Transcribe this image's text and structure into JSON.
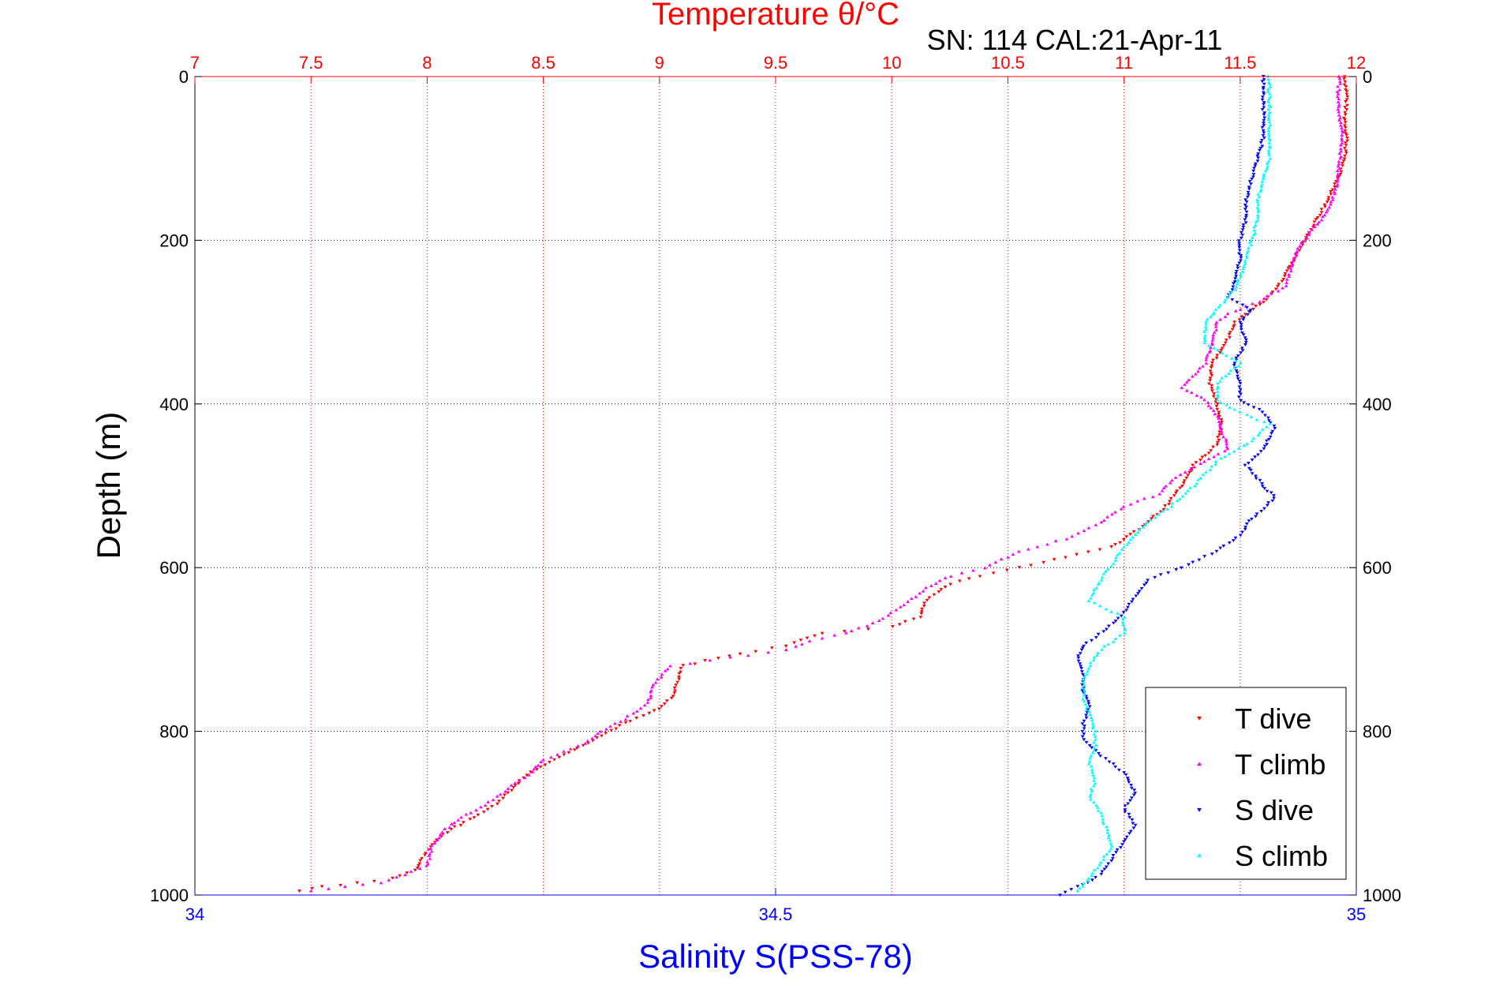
{
  "chart_data": {
    "type": "scatter",
    "title": "Temperature θ/°C",
    "subtitle": "SN: 114  CAL:21-Apr-11",
    "ylabel": "Depth (m)",
    "xlabel_bottom": "Salinity S(PSS-78)",
    "xlabel_top": "Temperature θ/°C",
    "y_reversed": true,
    "ylim": [
      0,
      1000
    ],
    "yticks": [
      0,
      200,
      400,
      600,
      800,
      1000
    ],
    "ytick_labels": [
      "0",
      "200",
      "400",
      "600",
      "800",
      "1000"
    ],
    "salinity_axis": {
      "lim": [
        34,
        35
      ],
      "ticks": [
        34,
        34.5,
        35
      ],
      "tick_labels": [
        "34",
        "34.5",
        "35"
      ],
      "color": "#0000ff"
    },
    "temperature_axis": {
      "lim": [
        7,
        12
      ],
      "ticks": [
        7,
        7.5,
        8,
        8.5,
        9,
        9.5,
        10,
        10.5,
        11,
        11.5,
        12
      ],
      "tick_labels": [
        "7",
        "7.5",
        "8",
        "8.5",
        "9",
        "9.5",
        "10",
        "10.5",
        "11",
        "11.5",
        "12"
      ],
      "color": "#ff0000"
    },
    "grid": true,
    "legend_position": "bottom-right",
    "series": [
      {
        "name": "T dive",
        "axis": "temperature",
        "marker": "triangle-down",
        "color": "#ff0000",
        "points": [
          [
            11.95,
            0
          ],
          [
            11.96,
            25
          ],
          [
            11.95,
            50
          ],
          [
            11.96,
            75
          ],
          [
            11.95,
            100
          ],
          [
            11.92,
            125
          ],
          [
            11.88,
            150
          ],
          [
            11.83,
            175
          ],
          [
            11.78,
            200
          ],
          [
            11.73,
            225
          ],
          [
            11.68,
            250
          ],
          [
            11.6,
            275
          ],
          [
            11.52,
            290
          ],
          [
            11.48,
            300
          ],
          [
            11.44,
            325
          ],
          [
            11.38,
            350
          ],
          [
            11.37,
            375
          ],
          [
            11.4,
            400
          ],
          [
            11.42,
            425
          ],
          [
            11.4,
            450
          ],
          [
            11.3,
            475
          ],
          [
            11.25,
            500
          ],
          [
            11.18,
            525
          ],
          [
            11.08,
            550
          ],
          [
            10.95,
            575
          ],
          [
            10.7,
            590
          ],
          [
            10.55,
            600
          ],
          [
            10.38,
            610
          ],
          [
            10.25,
            620
          ],
          [
            10.15,
            640
          ],
          [
            10.12,
            660
          ],
          [
            10.0,
            672
          ],
          [
            9.7,
            680
          ],
          [
            9.55,
            695
          ],
          [
            9.35,
            705
          ],
          [
            9.1,
            720
          ],
          [
            9.08,
            740
          ],
          [
            9.05,
            760
          ],
          [
            8.98,
            775
          ],
          [
            8.85,
            790
          ],
          [
            8.75,
            805
          ],
          [
            8.65,
            820
          ],
          [
            8.55,
            835
          ],
          [
            8.45,
            850
          ],
          [
            8.4,
            860
          ],
          [
            8.35,
            875
          ],
          [
            8.3,
            888
          ],
          [
            8.2,
            905
          ],
          [
            8.1,
            920
          ],
          [
            8.03,
            935
          ],
          [
            7.98,
            955
          ],
          [
            7.95,
            970
          ],
          [
            7.85,
            980
          ],
          [
            7.7,
            985
          ],
          [
            7.55,
            990
          ],
          [
            7.45,
            995
          ]
        ]
      },
      {
        "name": "T climb",
        "axis": "temperature",
        "marker": "triangle-up",
        "color": "#ff00ff",
        "points": [
          [
            11.93,
            0
          ],
          [
            11.92,
            25
          ],
          [
            11.93,
            50
          ],
          [
            11.94,
            75
          ],
          [
            11.93,
            100
          ],
          [
            11.92,
            125
          ],
          [
            11.9,
            150
          ],
          [
            11.85,
            175
          ],
          [
            11.8,
            190
          ],
          [
            11.75,
            210
          ],
          [
            11.72,
            235
          ],
          [
            11.7,
            255
          ],
          [
            11.58,
            275
          ],
          [
            11.45,
            290
          ],
          [
            11.4,
            300
          ],
          [
            11.38,
            325
          ],
          [
            11.35,
            350
          ],
          [
            11.25,
            380
          ],
          [
            11.35,
            395
          ],
          [
            11.4,
            415
          ],
          [
            11.43,
            440
          ],
          [
            11.45,
            455
          ],
          [
            11.35,
            470
          ],
          [
            11.22,
            490
          ],
          [
            11.15,
            510
          ],
          [
            11.0,
            525
          ],
          [
            10.9,
            545
          ],
          [
            10.75,
            565
          ],
          [
            10.55,
            580
          ],
          [
            10.4,
            600
          ],
          [
            10.25,
            610
          ],
          [
            10.15,
            625
          ],
          [
            10.05,
            645
          ],
          [
            9.95,
            665
          ],
          [
            9.8,
            680
          ],
          [
            9.65,
            690
          ],
          [
            9.55,
            700
          ],
          [
            9.3,
            710
          ],
          [
            9.05,
            720
          ],
          [
            8.98,
            740
          ],
          [
            8.95,
            765
          ],
          [
            8.85,
            785
          ],
          [
            8.75,
            800
          ],
          [
            8.68,
            815
          ],
          [
            8.5,
            835
          ],
          [
            8.45,
            850
          ],
          [
            8.35,
            870
          ],
          [
            8.25,
            890
          ],
          [
            8.15,
            905
          ],
          [
            8.08,
            920
          ],
          [
            8.02,
            940
          ],
          [
            8.0,
            965
          ],
          [
            7.8,
            985
          ],
          [
            7.65,
            990
          ],
          [
            7.5,
            995
          ]
        ]
      },
      {
        "name": "S dive",
        "axis": "salinity",
        "marker": "triangle-down",
        "color": "#0000ff",
        "points": [
          [
            34.92,
            0
          ],
          [
            34.92,
            25
          ],
          [
            34.92,
            50
          ],
          [
            34.92,
            75
          ],
          [
            34.915,
            100
          ],
          [
            34.91,
            125
          ],
          [
            34.905,
            150
          ],
          [
            34.905,
            175
          ],
          [
            34.9,
            200
          ],
          [
            34.9,
            225
          ],
          [
            34.895,
            250
          ],
          [
            34.89,
            270
          ],
          [
            34.91,
            285
          ],
          [
            34.9,
            300
          ],
          [
            34.905,
            325
          ],
          [
            34.895,
            350
          ],
          [
            34.9,
            375
          ],
          [
            34.9,
            395
          ],
          [
            34.92,
            410
          ],
          [
            34.93,
            430
          ],
          [
            34.92,
            455
          ],
          [
            34.905,
            475
          ],
          [
            34.92,
            500
          ],
          [
            34.93,
            515
          ],
          [
            34.91,
            540
          ],
          [
            34.9,
            560
          ],
          [
            34.88,
            580
          ],
          [
            34.85,
            600
          ],
          [
            34.82,
            615
          ],
          [
            34.81,
            635
          ],
          [
            34.8,
            655
          ],
          [
            34.785,
            675
          ],
          [
            34.765,
            695
          ],
          [
            34.76,
            710
          ],
          [
            34.765,
            730
          ],
          [
            34.765,
            750
          ],
          [
            34.77,
            770
          ],
          [
            34.765,
            790
          ],
          [
            34.765,
            810
          ],
          [
            34.78,
            830
          ],
          [
            34.8,
            850
          ],
          [
            34.81,
            875
          ],
          [
            34.8,
            895
          ],
          [
            34.81,
            915
          ],
          [
            34.8,
            935
          ],
          [
            34.79,
            955
          ],
          [
            34.78,
            975
          ],
          [
            34.76,
            990
          ],
          [
            34.745,
            1000
          ]
        ]
      },
      {
        "name": "S climb",
        "axis": "salinity",
        "marker": "triangle-up",
        "color": "#00ffff",
        "points": [
          [
            34.925,
            0
          ],
          [
            34.925,
            25
          ],
          [
            34.925,
            50
          ],
          [
            34.925,
            75
          ],
          [
            34.925,
            100
          ],
          [
            34.92,
            125
          ],
          [
            34.915,
            150
          ],
          [
            34.915,
            175
          ],
          [
            34.91,
            200
          ],
          [
            34.905,
            225
          ],
          [
            34.9,
            245
          ],
          [
            34.895,
            260
          ],
          [
            34.88,
            285
          ],
          [
            34.87,
            300
          ],
          [
            34.87,
            325
          ],
          [
            34.9,
            350
          ],
          [
            34.88,
            375
          ],
          [
            34.88,
            395
          ],
          [
            34.9,
            410
          ],
          [
            34.925,
            425
          ],
          [
            34.91,
            445
          ],
          [
            34.88,
            470
          ],
          [
            34.86,
            500
          ],
          [
            34.84,
            525
          ],
          [
            34.82,
            545
          ],
          [
            34.81,
            560
          ],
          [
            34.8,
            575
          ],
          [
            34.79,
            595
          ],
          [
            34.78,
            615
          ],
          [
            34.77,
            640
          ],
          [
            34.8,
            660
          ],
          [
            34.8,
            680
          ],
          [
            34.78,
            700
          ],
          [
            34.77,
            720
          ],
          [
            34.765,
            740
          ],
          [
            34.765,
            760
          ],
          [
            34.77,
            780
          ],
          [
            34.775,
            800
          ],
          [
            34.775,
            820
          ],
          [
            34.77,
            840
          ],
          [
            34.775,
            860
          ],
          [
            34.77,
            880
          ],
          [
            34.78,
            900
          ],
          [
            34.785,
            920
          ],
          [
            34.79,
            940
          ],
          [
            34.78,
            960
          ],
          [
            34.77,
            980
          ],
          [
            34.76,
            995
          ]
        ]
      }
    ]
  }
}
